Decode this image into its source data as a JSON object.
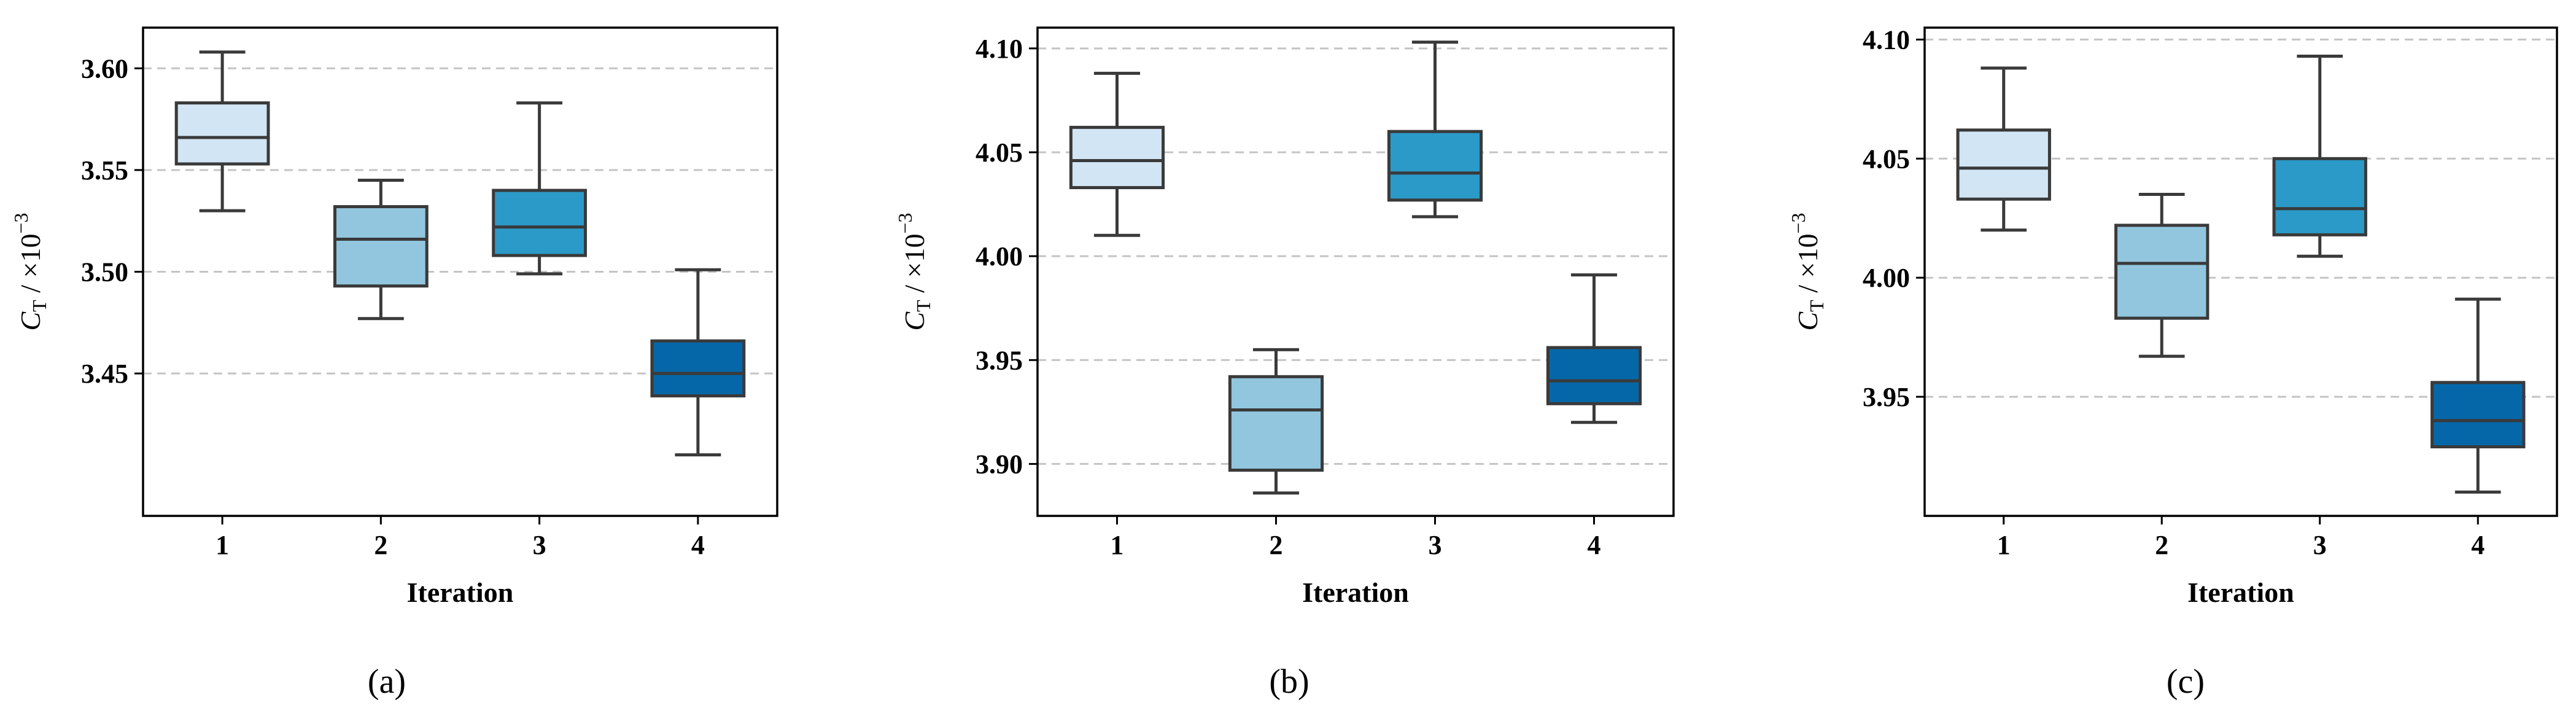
{
  "chart_data": [
    {
      "type": "box",
      "panel_label": "(a)",
      "categories": [
        "1",
        "2",
        "3",
        "4"
      ],
      "xlabel": "Iteration",
      "ylabel": {
        "symbol": "C",
        "subscript": "T",
        "unit": " / ×10",
        "exponent": "−3"
      },
      "ylim": [
        3.38,
        3.62
      ],
      "yticks": [
        3.45,
        3.5,
        3.55,
        3.6
      ],
      "ytick_labels": [
        "3.45",
        "3.50",
        "3.55",
        "3.60"
      ],
      "grid": "y-dashed",
      "boxes": [
        {
          "whislo": 3.53,
          "q1": 3.553,
          "median": 3.566,
          "q3": 3.583,
          "whishi": 3.608,
          "color": "#d2e5f4"
        },
        {
          "whislo": 3.477,
          "q1": 3.493,
          "median": 3.516,
          "q3": 3.532,
          "whishi": 3.545,
          "color": "#91c6de"
        },
        {
          "whislo": 3.499,
          "q1": 3.508,
          "median": 3.522,
          "q3": 3.54,
          "whishi": 3.583,
          "color": "#2b9ac8"
        },
        {
          "whislo": 3.41,
          "q1": 3.439,
          "median": 3.45,
          "q3": 3.466,
          "whishi": 3.501,
          "color": "#0667a8"
        }
      ]
    },
    {
      "type": "box",
      "panel_label": "(b)",
      "categories": [
        "1",
        "2",
        "3",
        "4"
      ],
      "xlabel": "Iteration",
      "ylabel": {
        "symbol": "C",
        "subscript": "T",
        "unit": " / ×10",
        "exponent": "−3"
      },
      "ylim": [
        3.875,
        4.11
      ],
      "yticks": [
        3.9,
        3.95,
        4.0,
        4.05,
        4.1
      ],
      "ytick_labels": [
        "3.90",
        "3.95",
        "4.00",
        "4.05",
        "4.10"
      ],
      "grid": "y-dashed",
      "boxes": [
        {
          "whislo": 4.01,
          "q1": 4.033,
          "median": 4.046,
          "q3": 4.062,
          "whishi": 4.088,
          "color": "#d2e5f4"
        },
        {
          "whislo": 3.886,
          "q1": 3.897,
          "median": 3.926,
          "q3": 3.942,
          "whishi": 3.955,
          "color": "#91c6de"
        },
        {
          "whislo": 4.019,
          "q1": 4.027,
          "median": 4.04,
          "q3": 4.06,
          "whishi": 4.103,
          "color": "#2b9ac8"
        },
        {
          "whislo": 3.92,
          "q1": 3.929,
          "median": 3.94,
          "q3": 3.956,
          "whishi": 3.991,
          "color": "#0667a8"
        }
      ]
    },
    {
      "type": "box",
      "panel_label": "(c)",
      "categories": [
        "1",
        "2",
        "3",
        "4"
      ],
      "xlabel": "Iteration",
      "ylabel": {
        "symbol": "C",
        "subscript": "T",
        "unit": " / ×10",
        "exponent": "−3"
      },
      "ylim": [
        3.9,
        4.105
      ],
      "yticks": [
        3.95,
        4.0,
        4.05,
        4.1
      ],
      "ytick_labels": [
        "3.95",
        "4.00",
        "4.05",
        "4.10"
      ],
      "grid": "y-dashed",
      "boxes": [
        {
          "whislo": 4.02,
          "q1": 4.033,
          "median": 4.046,
          "q3": 4.062,
          "whishi": 4.088,
          "color": "#d2e5f4"
        },
        {
          "whislo": 3.967,
          "q1": 3.983,
          "median": 4.006,
          "q3": 4.022,
          "whishi": 4.035,
          "color": "#91c6de"
        },
        {
          "whislo": 4.009,
          "q1": 4.018,
          "median": 4.029,
          "q3": 4.05,
          "whishi": 4.093,
          "color": "#2b9ac8"
        },
        {
          "whislo": 3.91,
          "q1": 3.929,
          "median": 3.94,
          "q3": 3.956,
          "whishi": 3.991,
          "color": "#0667a8"
        }
      ]
    }
  ],
  "style": {
    "box_edge_color": "#3a3a3a",
    "grid_color": "#c4c4c4",
    "axis_color": "#000000"
  }
}
